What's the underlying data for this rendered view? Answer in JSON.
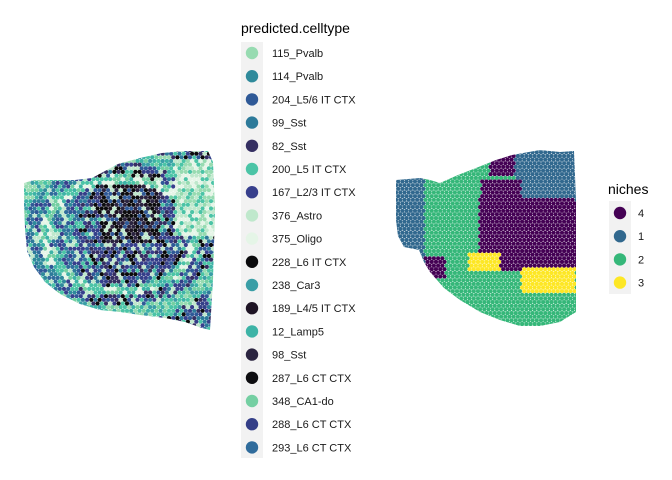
{
  "chart_data": [
    {
      "type": "scatter",
      "title": "",
      "legend_title": "predicted.celltype",
      "legend_position": "right",
      "grid": false,
      "categories": [
        {
          "label": "115_Pvalb",
          "color": "#97dbb1"
        },
        {
          "label": "114_Pvalb",
          "color": "#2f8a9b"
        },
        {
          "label": "204_L5/6 IT CTX",
          "color": "#2f5997"
        },
        {
          "label": "99_Sst",
          "color": "#2d7a9a"
        },
        {
          "label": "82_Sst",
          "color": "#352f62"
        },
        {
          "label": "200_L5 IT CTX",
          "color": "#4bc4a6"
        },
        {
          "label": "167_L2/3 IT CTX",
          "color": "#373f8c"
        },
        {
          "label": "376_Astro",
          "color": "#bfe8cc"
        },
        {
          "label": "375_Oligo",
          "color": "#e5f5e7"
        },
        {
          "label": "228_L6 IT CTX",
          "color": "#0a0a0c"
        },
        {
          "label": "238_Car3",
          "color": "#3a9ea6"
        },
        {
          "label": "189_L4/5 IT CTX",
          "color": "#1e1424"
        },
        {
          "label": "12_Lamp5",
          "color": "#3db3a6"
        },
        {
          "label": "98_Sst",
          "color": "#2b2440"
        },
        {
          "label": "287_L6 CT CTX",
          "color": "#0d0d10"
        },
        {
          "label": "348_CA1-do",
          "color": "#74cfa2"
        },
        {
          "label": "288_L6 CT CTX",
          "color": "#343f88"
        },
        {
          "label": "293_L6 CT CTX",
          "color": "#306c9c"
        }
      ]
    },
    {
      "type": "scatter",
      "title": "",
      "legend_title": "niches",
      "legend_position": "right",
      "grid": false,
      "categories": [
        {
          "label": "4",
          "color": "#440154"
        },
        {
          "label": "1",
          "color": "#31688e"
        },
        {
          "label": "2",
          "color": "#35b779"
        },
        {
          "label": "3",
          "color": "#fde725"
        }
      ]
    }
  ]
}
